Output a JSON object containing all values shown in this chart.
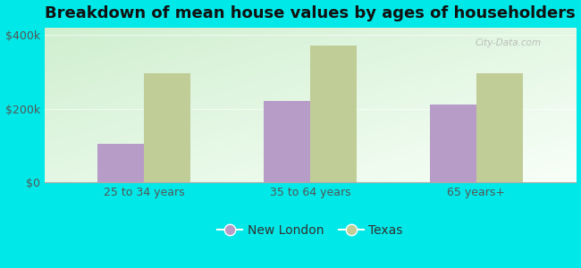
{
  "title": "Breakdown of mean house values by ages of householders",
  "categories": [
    "25 to 34 years",
    "35 to 64 years",
    "65 years+"
  ],
  "new_london_values": [
    105000,
    222000,
    212000
  ],
  "texas_values": [
    295000,
    370000,
    295000
  ],
  "ylim": [
    0,
    420000
  ],
  "ytick_labels": [
    "$0",
    "$200k",
    "$400k"
  ],
  "ytick_values": [
    0,
    200000,
    400000
  ],
  "bar_width": 0.28,
  "new_london_color": "#b89cc8",
  "texas_color": "#c0cd96",
  "background_color": "#00e8e8",
  "plot_bg_gradient_topleft": "#d0efd0",
  "plot_bg_gradient_bottomright": "#f0fff0",
  "legend_labels": [
    "New London",
    "Texas"
  ],
  "title_fontsize": 13,
  "tick_fontsize": 9,
  "legend_fontsize": 10,
  "watermark": "City-Data.com",
  "grid_color": "#e8f8e8",
  "tick_color": "#555555"
}
